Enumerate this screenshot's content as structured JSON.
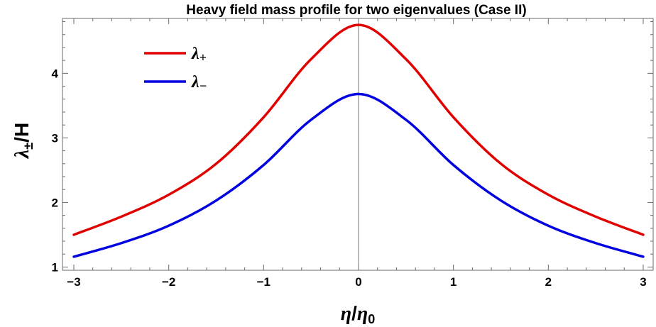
{
  "chart_data": {
    "type": "line",
    "title": "Heavy field mass profile for two eigenvalues (Case II)",
    "xlabel": "η/η₀",
    "ylabel": "λ±/H",
    "xlim": [
      -3.0,
      3.0
    ],
    "ylim": [
      0.95,
      4.85
    ],
    "xticks": [
      -3,
      -2,
      -1,
      0,
      1,
      2,
      3
    ],
    "xtick_labels": [
      "−3",
      "−2",
      "−1",
      "0",
      "1",
      "2",
      "3"
    ],
    "yticks": [
      1,
      2,
      3,
      4
    ],
    "ytick_labels": [
      "1",
      "2",
      "3",
      "4"
    ],
    "grid": false,
    "vertical_reference_x": 0,
    "legend_position": "top-left",
    "x": [
      -3.0,
      -2.5,
      -2.0,
      -1.5,
      -1.0,
      -0.5,
      0.0,
      0.5,
      1.0,
      1.5,
      2.0,
      2.5,
      3.0
    ],
    "series": [
      {
        "name": "λ+",
        "color": "#e00000",
        "values": [
          1.5,
          1.78,
          2.12,
          2.6,
          3.32,
          4.22,
          4.75,
          4.22,
          3.32,
          2.6,
          2.12,
          1.78,
          1.5
        ]
      },
      {
        "name": "λ−",
        "color": "#0000e0",
        "values": [
          1.16,
          1.37,
          1.64,
          2.03,
          2.58,
          3.28,
          3.68,
          3.28,
          2.58,
          2.03,
          1.64,
          1.37,
          1.16
        ]
      }
    ]
  }
}
